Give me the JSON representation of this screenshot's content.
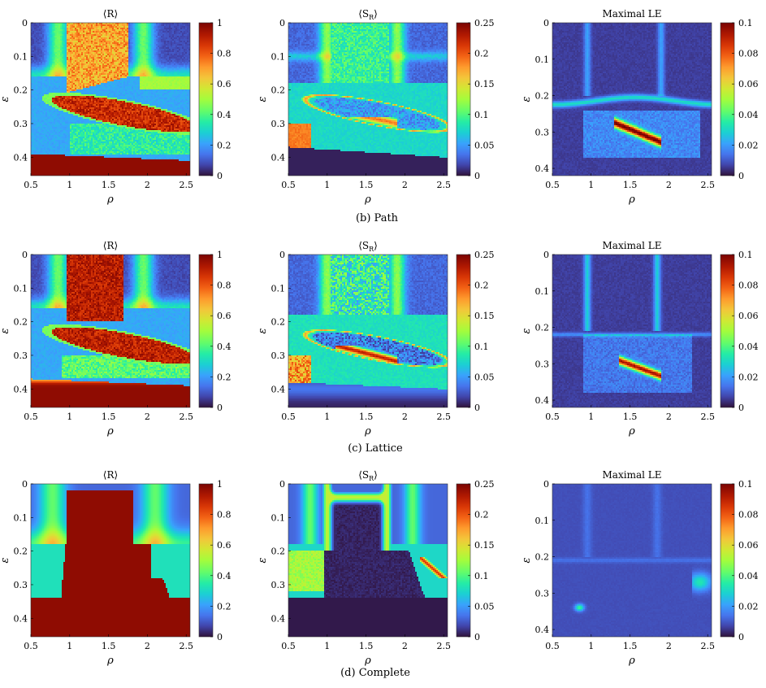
{
  "panel_colors": {
    "colormap": "turbo",
    "tick_color": "#000000",
    "background": "#ffffff"
  },
  "rows": [
    {
      "caption": "(b) Path"
    },
    {
      "caption": "(c) Lattice"
    },
    {
      "caption": "(d) Complete"
    }
  ],
  "chart_data": [
    {
      "type": "heatmap",
      "row": 0,
      "col": 0,
      "network": "Path",
      "title": "⟨R⟩",
      "xlabel": "ρ",
      "ylabel": "ε",
      "xlim": [
        0.5,
        2.55
      ],
      "ylim": [
        0.455,
        0
      ],
      "xticks": [
        "0.5",
        "1",
        "1.5",
        "2",
        "2.5"
      ],
      "xtick_values": [
        0.5,
        1,
        1.5,
        2,
        2.5
      ],
      "yticks": [
        "0",
        "0.1",
        "0.2",
        "0.3",
        "0.4"
      ],
      "ytick_values": [
        0,
        0.1,
        0.2,
        0.3,
        0.4
      ],
      "colorbar": {
        "min": 0,
        "max": 1,
        "ticks": [
          "0",
          "0.2",
          "0.4",
          "0.6",
          "0.8",
          "1"
        ],
        "tick_values": [
          0,
          0.2,
          0.4,
          0.6,
          0.8,
          1
        ]
      },
      "pattern": "order_path"
    },
    {
      "type": "heatmap",
      "row": 0,
      "col": 1,
      "network": "Path",
      "title": "⟨S_R⟩",
      "xlabel": "ρ",
      "ylabel": "ε",
      "xlim": [
        0.5,
        2.55
      ],
      "ylim": [
        0.455,
        0
      ],
      "xticks": [
        "0.5",
        "1",
        "1.5",
        "2",
        "2.5"
      ],
      "xtick_values": [
        0.5,
        1,
        1.5,
        2,
        2.5
      ],
      "yticks": [
        "0",
        "0.1",
        "0.2",
        "0.3",
        "0.4"
      ],
      "ytick_values": [
        0,
        0.1,
        0.2,
        0.3,
        0.4
      ],
      "colorbar": {
        "min": 0,
        "max": 0.25,
        "ticks": [
          "0",
          "0.05",
          "0.1",
          "0.15",
          "0.2",
          "0.25"
        ],
        "tick_values": [
          0,
          0.05,
          0.1,
          0.15,
          0.2,
          0.25
        ]
      },
      "pattern": "std_path"
    },
    {
      "type": "heatmap",
      "row": 0,
      "col": 2,
      "network": "Path",
      "title": "Maximal LE",
      "xlabel": "ρ",
      "ylabel": "ε",
      "xlim": [
        0.5,
        2.55
      ],
      "ylim": [
        0.42,
        0
      ],
      "xticks": [
        "0.5",
        "1",
        "1.5",
        "2",
        "2.5"
      ],
      "xtick_values": [
        0.5,
        1,
        1.5,
        2,
        2.5
      ],
      "yticks": [
        "0",
        "0.1",
        "0.2",
        "0.3",
        "0.4"
      ],
      "ytick_values": [
        0,
        0.1,
        0.2,
        0.3,
        0.4
      ],
      "colorbar": {
        "min": 0,
        "max": 0.1,
        "ticks": [
          "0",
          "0.02",
          "0.04",
          "0.06",
          "0.08",
          "0.1"
        ],
        "tick_values": [
          0,
          0.02,
          0.04,
          0.06,
          0.08,
          0.1
        ]
      },
      "pattern": "le_path"
    },
    {
      "type": "heatmap",
      "row": 1,
      "col": 0,
      "network": "Lattice",
      "title": "⟨R⟩",
      "xlabel": "ρ",
      "ylabel": "ε",
      "xlim": [
        0.5,
        2.55
      ],
      "ylim": [
        0.455,
        0
      ],
      "xticks": [
        "0.5",
        "1",
        "1.5",
        "2",
        "2.5"
      ],
      "xtick_values": [
        0.5,
        1,
        1.5,
        2,
        2.5
      ],
      "yticks": [
        "0",
        "0.1",
        "0.2",
        "0.3",
        "0.4"
      ],
      "ytick_values": [
        0,
        0.1,
        0.2,
        0.3,
        0.4
      ],
      "colorbar": {
        "min": 0,
        "max": 1,
        "ticks": [
          "0",
          "0.2",
          "0.4",
          "0.6",
          "0.8",
          "1"
        ],
        "tick_values": [
          0,
          0.2,
          0.4,
          0.6,
          0.8,
          1
        ]
      },
      "pattern": "order_lattice"
    },
    {
      "type": "heatmap",
      "row": 1,
      "col": 1,
      "network": "Lattice",
      "title": "⟨S_R⟩",
      "xlabel": "ρ",
      "ylabel": "ε",
      "xlim": [
        0.5,
        2.55
      ],
      "ylim": [
        0.455,
        0
      ],
      "xticks": [
        "0.5",
        "1",
        "1.5",
        "2",
        "2.5"
      ],
      "xtick_values": [
        0.5,
        1,
        1.5,
        2,
        2.5
      ],
      "yticks": [
        "0",
        "0.1",
        "0.2",
        "0.3",
        "0.4"
      ],
      "ytick_values": [
        0,
        0.1,
        0.2,
        0.3,
        0.4
      ],
      "colorbar": {
        "min": 0,
        "max": 0.25,
        "ticks": [
          "0",
          "0.05",
          "0.1",
          "0.15",
          "0.2",
          "0.25"
        ],
        "tick_values": [
          0,
          0.05,
          0.1,
          0.15,
          0.2,
          0.25
        ]
      },
      "pattern": "std_lattice"
    },
    {
      "type": "heatmap",
      "row": 1,
      "col": 2,
      "network": "Lattice",
      "title": "Maximal LE",
      "xlabel": "ρ",
      "ylabel": "ε",
      "xlim": [
        0.5,
        2.55
      ],
      "ylim": [
        0.42,
        0
      ],
      "xticks": [
        "0.5",
        "1",
        "1.5",
        "2",
        "2.5"
      ],
      "xtick_values": [
        0.5,
        1,
        1.5,
        2,
        2.5
      ],
      "yticks": [
        "0",
        "0.1",
        "0.2",
        "0.3",
        "0.4"
      ],
      "ytick_values": [
        0,
        0.1,
        0.2,
        0.3,
        0.4
      ],
      "colorbar": {
        "min": 0,
        "max": 0.1,
        "ticks": [
          "0",
          "0.02",
          "0.04",
          "0.06",
          "0.08",
          "0.1"
        ],
        "tick_values": [
          0,
          0.02,
          0.04,
          0.06,
          0.08,
          0.1
        ]
      },
      "pattern": "le_lattice"
    },
    {
      "type": "heatmap",
      "row": 2,
      "col": 0,
      "network": "Complete",
      "title": "⟨R⟩",
      "xlabel": "ρ",
      "ylabel": "ε",
      "xlim": [
        0.5,
        2.55
      ],
      "ylim": [
        0.455,
        0
      ],
      "xticks": [
        "0.5",
        "1",
        "1.5",
        "2",
        "2.5"
      ],
      "xtick_values": [
        0.5,
        1,
        1.5,
        2,
        2.5
      ],
      "yticks": [
        "0",
        "0.1",
        "0.2",
        "0.3",
        "0.4"
      ],
      "ytick_values": [
        0,
        0.1,
        0.2,
        0.3,
        0.4
      ],
      "colorbar": {
        "min": 0,
        "max": 1,
        "ticks": [
          "0",
          "0.2",
          "0.4",
          "0.6",
          "0.8",
          "1"
        ],
        "tick_values": [
          0,
          0.2,
          0.4,
          0.6,
          0.8,
          1
        ]
      },
      "pattern": "order_complete"
    },
    {
      "type": "heatmap",
      "row": 2,
      "col": 1,
      "network": "Complete",
      "title": "⟨S_R⟩",
      "xlabel": "ρ",
      "ylabel": "ε",
      "xlim": [
        0.5,
        2.55
      ],
      "ylim": [
        0.455,
        0
      ],
      "xticks": [
        "0.5",
        "1",
        "1.5",
        "2",
        "2.5"
      ],
      "xtick_values": [
        0.5,
        1,
        1.5,
        2,
        2.5
      ],
      "yticks": [
        "0",
        "0.1",
        "0.2",
        "0.3",
        "0.4"
      ],
      "ytick_values": [
        0,
        0.1,
        0.2,
        0.3,
        0.4
      ],
      "colorbar": {
        "min": 0,
        "max": 0.25,
        "ticks": [
          "0",
          "0.05",
          "0.1",
          "0.15",
          "0.2",
          "0.25"
        ],
        "tick_values": [
          0,
          0.05,
          0.1,
          0.15,
          0.2,
          0.25
        ]
      },
      "pattern": "std_complete"
    },
    {
      "type": "heatmap",
      "row": 2,
      "col": 2,
      "network": "Complete",
      "title": "Maximal LE",
      "xlabel": "ρ",
      "ylabel": "ε",
      "xlim": [
        0.5,
        2.55
      ],
      "ylim": [
        0.42,
        0
      ],
      "xticks": [
        "0.5",
        "1",
        "1.5",
        "2",
        "2.5"
      ],
      "xtick_values": [
        0.5,
        1,
        1.5,
        2,
        2.5
      ],
      "yticks": [
        "0",
        "0.1",
        "0.2",
        "0.3",
        "0.4"
      ],
      "ytick_values": [
        0,
        0.1,
        0.2,
        0.3,
        0.4
      ],
      "colorbar": {
        "min": 0,
        "max": 0.1,
        "ticks": [
          "0",
          "0.02",
          "0.04",
          "0.06",
          "0.08",
          "0.1"
        ],
        "tick_values": [
          0,
          0.02,
          0.04,
          0.06,
          0.08,
          0.1
        ]
      },
      "pattern": "le_complete"
    }
  ]
}
